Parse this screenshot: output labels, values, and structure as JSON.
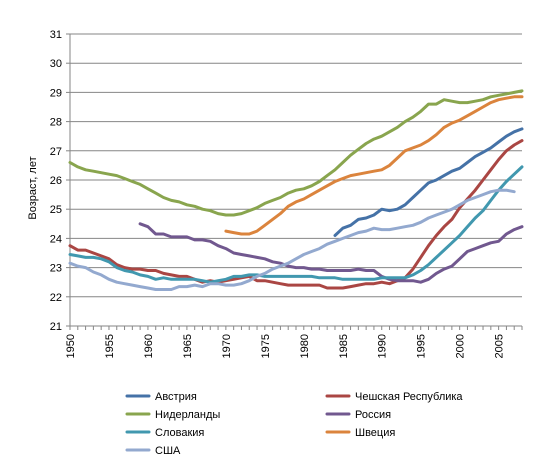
{
  "chart_data": {
    "type": "line",
    "title": "",
    "xlabel": "",
    "ylabel": "Возраст, лет",
    "xlim": [
      1950,
      2008
    ],
    "ylim": [
      21,
      31
    ],
    "xticks": [
      1950,
      1955,
      1960,
      1965,
      1970,
      1975,
      1980,
      1985,
      1990,
      1995,
      2000,
      2005
    ],
    "yticks": [
      21,
      22,
      23,
      24,
      25,
      26,
      27,
      28,
      29,
      30,
      31
    ],
    "grid": "horizontal",
    "legend_position": "bottom",
    "series": [
      {
        "name": "Австрия",
        "color": "#4572A7",
        "x": [
          1984,
          1985,
          1986,
          1987,
          1988,
          1989,
          1990,
          1991,
          1992,
          1993,
          1994,
          1995,
          1996,
          1997,
          1998,
          1999,
          2000,
          2001,
          2002,
          2003,
          2004,
          2005,
          2006,
          2007,
          2008
        ],
        "y": [
          24.1,
          24.35,
          24.45,
          24.65,
          24.7,
          24.8,
          25.0,
          24.95,
          25.0,
          25.15,
          25.4,
          25.65,
          25.9,
          26.0,
          26.15,
          26.3,
          26.4,
          26.6,
          26.8,
          26.95,
          27.1,
          27.3,
          27.5,
          27.65,
          27.75
        ]
      },
      {
        "name": "Чешская Республика",
        "color": "#AA4643",
        "x": [
          1950,
          1951,
          1952,
          1953,
          1954,
          1955,
          1956,
          1957,
          1958,
          1959,
          1960,
          1961,
          1962,
          1963,
          1964,
          1965,
          1966,
          1967,
          1968,
          1969,
          1970,
          1971,
          1972,
          1973,
          1974,
          1975,
          1976,
          1977,
          1978,
          1979,
          1980,
          1981,
          1982,
          1983,
          1984,
          1985,
          1986,
          1987,
          1988,
          1989,
          1990,
          1991,
          1992,
          1993,
          1994,
          1995,
          1996,
          1997,
          1998,
          1999,
          2000,
          2001,
          2002,
          2003,
          2004,
          2005,
          2006,
          2007,
          2008
        ],
        "y": [
          23.75,
          23.6,
          23.6,
          23.5,
          23.4,
          23.3,
          23.1,
          23.0,
          22.95,
          22.95,
          22.9,
          22.9,
          22.8,
          22.75,
          22.7,
          22.7,
          22.6,
          22.5,
          22.55,
          22.5,
          22.55,
          22.6,
          22.65,
          22.7,
          22.55,
          22.55,
          22.5,
          22.45,
          22.4,
          22.4,
          22.4,
          22.4,
          22.4,
          22.3,
          22.3,
          22.3,
          22.35,
          22.4,
          22.45,
          22.45,
          22.5,
          22.45,
          22.55,
          22.65,
          22.95,
          23.35,
          23.75,
          24.1,
          24.4,
          24.65,
          25.05,
          25.35,
          25.65,
          26.0,
          26.35,
          26.7,
          27.0,
          27.2,
          27.35
        ]
      },
      {
        "name": "Нидерланды",
        "color": "#89A54E",
        "x": [
          1950,
          1951,
          1952,
          1953,
          1954,
          1955,
          1956,
          1957,
          1958,
          1959,
          1960,
          1961,
          1962,
          1963,
          1964,
          1965,
          1966,
          1967,
          1968,
          1969,
          1970,
          1971,
          1972,
          1973,
          1974,
          1975,
          1976,
          1977,
          1978,
          1979,
          1980,
          1981,
          1982,
          1983,
          1984,
          1985,
          1986,
          1987,
          1988,
          1989,
          1990,
          1991,
          1992,
          1993,
          1994,
          1995,
          1996,
          1997,
          1998,
          1999,
          2000,
          2001,
          2002,
          2003,
          2004,
          2005,
          2006,
          2007,
          2008
        ],
        "y": [
          26.6,
          26.45,
          26.35,
          26.3,
          26.25,
          26.2,
          26.15,
          26.05,
          25.95,
          25.85,
          25.7,
          25.55,
          25.4,
          25.3,
          25.25,
          25.15,
          25.1,
          25.0,
          24.95,
          24.85,
          24.8,
          24.8,
          24.85,
          24.95,
          25.05,
          25.2,
          25.3,
          25.4,
          25.55,
          25.65,
          25.7,
          25.8,
          25.95,
          26.15,
          26.35,
          26.6,
          26.85,
          27.05,
          27.25,
          27.4,
          27.5,
          27.65,
          27.8,
          28.0,
          28.15,
          28.35,
          28.6,
          28.6,
          28.75,
          28.7,
          28.65,
          28.65,
          28.7,
          28.75,
          28.85,
          28.9,
          28.95,
          29.0,
          29.05
        ]
      },
      {
        "name": "Россия",
        "color": "#71588F",
        "x": [
          1959,
          1960,
          1961,
          1962,
          1963,
          1964,
          1965,
          1966,
          1967,
          1968,
          1969,
          1970,
          1971,
          1972,
          1973,
          1974,
          1975,
          1976,
          1977,
          1978,
          1979,
          1980,
          1981,
          1982,
          1983,
          1984,
          1985,
          1986,
          1987,
          1988,
          1989,
          1990,
          1991,
          1992,
          1993,
          1994,
          1995,
          1996,
          1997,
          1998,
          1999,
          2000,
          2001,
          2002,
          2003,
          2004,
          2005,
          2006,
          2007,
          2008
        ],
        "y": [
          24.5,
          24.4,
          24.15,
          24.15,
          24.05,
          24.05,
          24.05,
          23.95,
          23.95,
          23.9,
          23.75,
          23.65,
          23.5,
          23.45,
          23.4,
          23.35,
          23.3,
          23.2,
          23.15,
          23.05,
          23.0,
          23.0,
          22.95,
          22.95,
          22.9,
          22.9,
          22.9,
          22.9,
          22.95,
          22.9,
          22.9,
          22.7,
          22.6,
          22.55,
          22.55,
          22.55,
          22.5,
          22.6,
          22.8,
          22.95,
          23.05,
          23.3,
          23.55,
          23.65,
          23.75,
          23.85,
          23.9,
          24.15,
          24.3,
          24.4
        ]
      },
      {
        "name": "Словакия",
        "color": "#4198AF",
        "x": [
          1950,
          1951,
          1952,
          1953,
          1954,
          1955,
          1956,
          1957,
          1958,
          1959,
          1960,
          1961,
          1962,
          1963,
          1964,
          1965,
          1966,
          1967,
          1968,
          1969,
          1970,
          1971,
          1972,
          1973,
          1974,
          1975,
          1976,
          1977,
          1978,
          1979,
          1980,
          1981,
          1982,
          1983,
          1984,
          1985,
          1986,
          1987,
          1988,
          1989,
          1990,
          1991,
          1992,
          1993,
          1994,
          1995,
          1996,
          1997,
          1998,
          1999,
          2000,
          2001,
          2002,
          2003,
          2004,
          2005,
          2006,
          2007,
          2008
        ],
        "y": [
          23.45,
          23.4,
          23.35,
          23.35,
          23.3,
          23.2,
          23.0,
          22.9,
          22.85,
          22.75,
          22.7,
          22.6,
          22.65,
          22.6,
          22.6,
          22.6,
          22.6,
          22.55,
          22.5,
          22.55,
          22.6,
          22.7,
          22.7,
          22.75,
          22.75,
          22.7,
          22.7,
          22.7,
          22.7,
          22.7,
          22.7,
          22.7,
          22.65,
          22.65,
          22.65,
          22.6,
          22.6,
          22.6,
          22.6,
          22.6,
          22.65,
          22.65,
          22.65,
          22.65,
          22.75,
          22.9,
          23.1,
          23.35,
          23.6,
          23.85,
          24.1,
          24.4,
          24.7,
          24.95,
          25.3,
          25.65,
          25.95,
          26.2,
          26.45
        ]
      },
      {
        "name": "Швеция",
        "color": "#DB843D",
        "x": [
          1970,
          1971,
          1972,
          1973,
          1974,
          1975,
          1976,
          1977,
          1978,
          1979,
          1980,
          1981,
          1982,
          1983,
          1984,
          1985,
          1986,
          1987,
          1988,
          1989,
          1990,
          1991,
          1992,
          1993,
          1994,
          1995,
          1996,
          1997,
          1998,
          1999,
          2000,
          2001,
          2002,
          2003,
          2004,
          2005,
          2006,
          2007,
          2008
        ],
        "y": [
          24.25,
          24.2,
          24.15,
          24.15,
          24.25,
          24.45,
          24.65,
          24.85,
          25.1,
          25.25,
          25.35,
          25.5,
          25.65,
          25.8,
          25.95,
          26.05,
          26.15,
          26.2,
          26.25,
          26.3,
          26.35,
          26.5,
          26.75,
          27.0,
          27.1,
          27.2,
          27.35,
          27.55,
          27.8,
          27.95,
          28.05,
          28.2,
          28.35,
          28.5,
          28.65,
          28.75,
          28.8,
          28.85,
          28.85
        ]
      },
      {
        "name": "США",
        "color": "#93A9CF",
        "x": [
          1950,
          1951,
          1952,
          1953,
          1954,
          1955,
          1956,
          1957,
          1958,
          1959,
          1960,
          1961,
          1962,
          1963,
          1964,
          1965,
          1966,
          1967,
          1968,
          1969,
          1970,
          1971,
          1972,
          1973,
          1974,
          1975,
          1976,
          1977,
          1978,
          1979,
          1980,
          1981,
          1982,
          1983,
          1984,
          1985,
          1986,
          1987,
          1988,
          1989,
          1990,
          1991,
          1992,
          1993,
          1994,
          1995,
          1996,
          1997,
          1998,
          1999,
          2000,
          2001,
          2002,
          2003,
          2004,
          2005,
          2006,
          2007
        ],
        "y": [
          23.15,
          23.05,
          23.0,
          22.85,
          22.75,
          22.6,
          22.5,
          22.45,
          22.4,
          22.35,
          22.3,
          22.25,
          22.25,
          22.25,
          22.35,
          22.35,
          22.4,
          22.35,
          22.45,
          22.45,
          22.4,
          22.4,
          22.45,
          22.55,
          22.7,
          22.8,
          22.95,
          23.05,
          23.15,
          23.3,
          23.45,
          23.55,
          23.65,
          23.8,
          23.9,
          24.0,
          24.1,
          24.2,
          24.25,
          24.35,
          24.3,
          24.3,
          24.35,
          24.4,
          24.45,
          24.55,
          24.7,
          24.8,
          24.9,
          25.0,
          25.15,
          25.3,
          25.4,
          25.5,
          25.6,
          25.65,
          25.65,
          25.6
        ]
      }
    ]
  }
}
